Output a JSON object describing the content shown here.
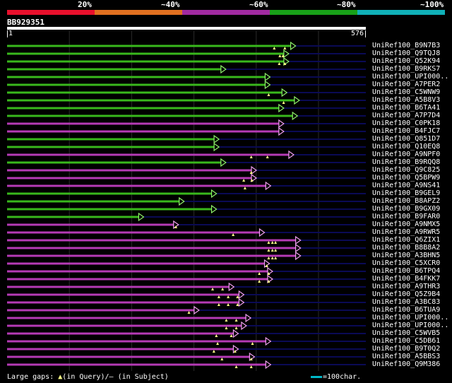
{
  "header": {
    "percent_labels": [
      "20%",
      "~40%",
      "~60%",
      "~80%",
      "~100%"
    ],
    "band_colors": [
      "#e8102c",
      "#e07020",
      "#a02aa0",
      "#18a018",
      "#10b0b8"
    ],
    "query_id": "BB929351",
    "ruler_start": "1",
    "ruler_end": "576"
  },
  "colors": {
    "green": "#39b81c",
    "purple": "#b53ab5",
    "green_head": "#8ef06a",
    "purple_head": "#f0a0f0",
    "trail": "#0a0a55",
    "gap_marker": "#ffff88",
    "gridline": "#2a2a2a"
  },
  "query_length": 576,
  "hits": [
    {
      "id": "UniRef100_B9N7B3",
      "color": "green",
      "end": 461,
      "gaps": [
        429,
        446
      ]
    },
    {
      "id": "UniRef100_Q9TQJ8",
      "color": "green",
      "end": 450,
      "gaps": [
        438,
        443
      ]
    },
    {
      "id": "UniRef100_Q52K94",
      "color": "green",
      "end": 450,
      "gaps": [
        437,
        446
      ]
    },
    {
      "id": "UniRef100_B9RKS7",
      "color": "green",
      "end": 349,
      "gaps": []
    },
    {
      "id": "UniRef100_UPI000..",
      "color": "green",
      "end": 420,
      "gaps": []
    },
    {
      "id": "UniRef100_A7PER2",
      "color": "green",
      "end": 420,
      "gaps": []
    },
    {
      "id": "UniRef100_C5WNW9",
      "color": "green",
      "end": 447,
      "gaps": [
        420
      ]
    },
    {
      "id": "UniRef100_A5B8V3",
      "color": "green",
      "end": 467,
      "gaps": [
        444
      ]
    },
    {
      "id": "UniRef100_B6TA41",
      "color": "green",
      "end": 442,
      "gaps": []
    },
    {
      "id": "UniRef100_A7P7D4",
      "color": "green",
      "end": 464,
      "gaps": []
    },
    {
      "id": "UniRef100_C0PK18",
      "color": "purple",
      "end": 442,
      "gaps": []
    },
    {
      "id": "UniRef100_B4FJC7",
      "color": "purple",
      "end": 442,
      "gaps": []
    },
    {
      "id": "UniRef100_Q851D7",
      "color": "green",
      "end": 338,
      "gaps": []
    },
    {
      "id": "UniRef100_Q10EQ8",
      "color": "green",
      "end": 338,
      "gaps": []
    },
    {
      "id": "UniRef100_A9NPF0",
      "color": "purple",
      "end": 458,
      "gaps": [
        392,
        418
      ]
    },
    {
      "id": "UniRef100_B9RQQ8",
      "color": "green",
      "end": 349,
      "gaps": []
    },
    {
      "id": "UniRef100_Q9C825",
      "color": "purple",
      "end": 398,
      "gaps": [
        392
      ]
    },
    {
      "id": "UniRef100_Q5BPW9",
      "color": "purple",
      "end": 398,
      "gaps": [
        380,
        393
      ]
    },
    {
      "id": "UniRef100_A9NS41",
      "color": "purple",
      "end": 421,
      "gaps": [
        382
      ]
    },
    {
      "id": "UniRef100_B9GEL9",
      "color": "green",
      "end": 334,
      "gaps": []
    },
    {
      "id": "UniRef100_B8APZ2",
      "color": "green",
      "end": 282,
      "gaps": []
    },
    {
      "id": "UniRef100_B9GX09",
      "color": "green",
      "end": 334,
      "gaps": []
    },
    {
      "id": "UniRef100_B9FAR0",
      "color": "green",
      "end": 217,
      "gaps": []
    },
    {
      "id": "UniRef100_A9NMX5",
      "color": "purple",
      "end": 273,
      "gaps": [
        271
      ]
    },
    {
      "id": "UniRef100_A9RWR5",
      "color": "purple",
      "end": 411,
      "gaps": [
        363
      ]
    },
    {
      "id": "UniRef100_Q6ZIX1",
      "color": "purple",
      "end": 469,
      "gaps": [
        420,
        426,
        431
      ]
    },
    {
      "id": "UniRef100_B8B8A2",
      "color": "purple",
      "end": 469,
      "gaps": [
        420,
        426,
        431
      ]
    },
    {
      "id": "UniRef100_A3BHN5",
      "color": "purple",
      "end": 469,
      "gaps": [
        420,
        426,
        431
      ]
    },
    {
      "id": "UniRef100_C5XCR0",
      "color": "purple",
      "end": 419,
      "gaps": [
        417
      ]
    },
    {
      "id": "UniRef100_B6TPQ4",
      "color": "purple",
      "end": 424,
      "gaps": [
        405,
        420
      ]
    },
    {
      "id": "UniRef100_B4FKK7",
      "color": "purple",
      "end": 424,
      "gaps": [
        405,
        420
      ]
    },
    {
      "id": "UniRef100_A9THR3",
      "color": "purple",
      "end": 362,
      "gaps": [
        330,
        346
      ]
    },
    {
      "id": "UniRef100_Q5Z9B4",
      "color": "purple",
      "end": 378,
      "gaps": [
        340,
        355,
        370
      ]
    },
    {
      "id": "UniRef100_A3BC83",
      "color": "purple",
      "end": 378,
      "gaps": [
        340,
        355,
        370
      ]
    },
    {
      "id": "UniRef100_B6TUA9",
      "color": "purple",
      "end": 306,
      "gaps": [
        292
      ]
    },
    {
      "id": "UniRef100_UPI000..",
      "color": "purple",
      "end": 389,
      "gaps": [
        352,
        368
      ]
    },
    {
      "id": "UniRef100_UPI000..",
      "color": "purple",
      "end": 382,
      "gaps": [
        352,
        368
      ]
    },
    {
      "id": "UniRef100_C5WVB5",
      "color": "purple",
      "end": 369,
      "gaps": [
        336,
        360
      ]
    },
    {
      "id": "UniRef100_C5DB61",
      "color": "purple",
      "end": 421,
      "gaps": [
        338,
        394
      ]
    },
    {
      "id": "UniRef100_B9T0Q2",
      "color": "purple",
      "end": 369,
      "gaps": [
        332,
        366
      ]
    },
    {
      "id": "UniRef100_A5BBS3",
      "color": "purple",
      "end": 395,
      "gaps": [
        345,
        392
      ]
    },
    {
      "id": "UniRef100_Q9M386",
      "color": "purple",
      "end": 421,
      "gaps": [
        368,
        392
      ]
    }
  ],
  "legend": {
    "prefix": "Large gaps:",
    "triangle": "▲",
    "query_text": "(in Query)/",
    "dash": "–",
    "subject_text": " (in Subject)",
    "scale_text": "=100char."
  }
}
